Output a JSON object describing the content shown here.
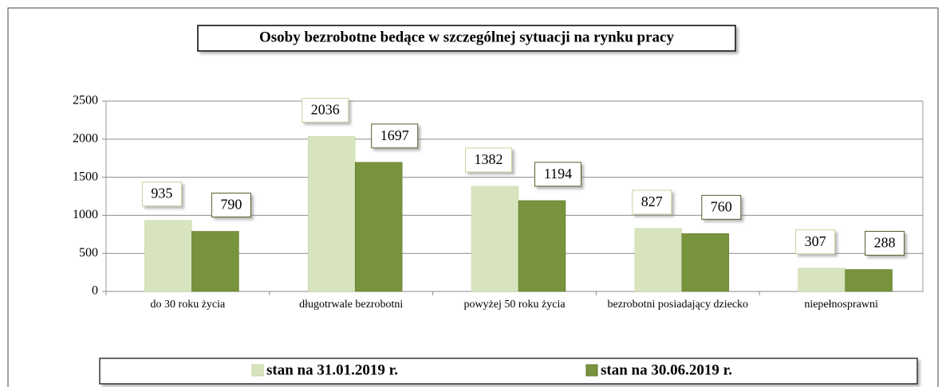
{
  "chart_data": {
    "type": "bar",
    "title": "Osoby bezrobotne bedące w szczególnej sytuacji na rynku pracy",
    "categories": [
      "do 30 roku życia",
      "długotrwale bezrobotni",
      "powyżej 50 roku życia",
      "bezrobotni posiadający dziecko",
      "niepełnosprawni"
    ],
    "series": [
      {
        "name": "stan na 31.01.2019 r.",
        "color": "#d7e4bd",
        "values": [
          935,
          2036,
          1382,
          827,
          307
        ]
      },
      {
        "name": "stan na 30.06.2019 r.",
        "color": "#77933c",
        "values": [
          790,
          1697,
          1194,
          760,
          288
        ]
      }
    ],
    "ylim": [
      0,
      2500
    ],
    "yticks": [
      0,
      500,
      1000,
      1500,
      2000,
      2500
    ],
    "grid": true,
    "legend": "bottom"
  }
}
